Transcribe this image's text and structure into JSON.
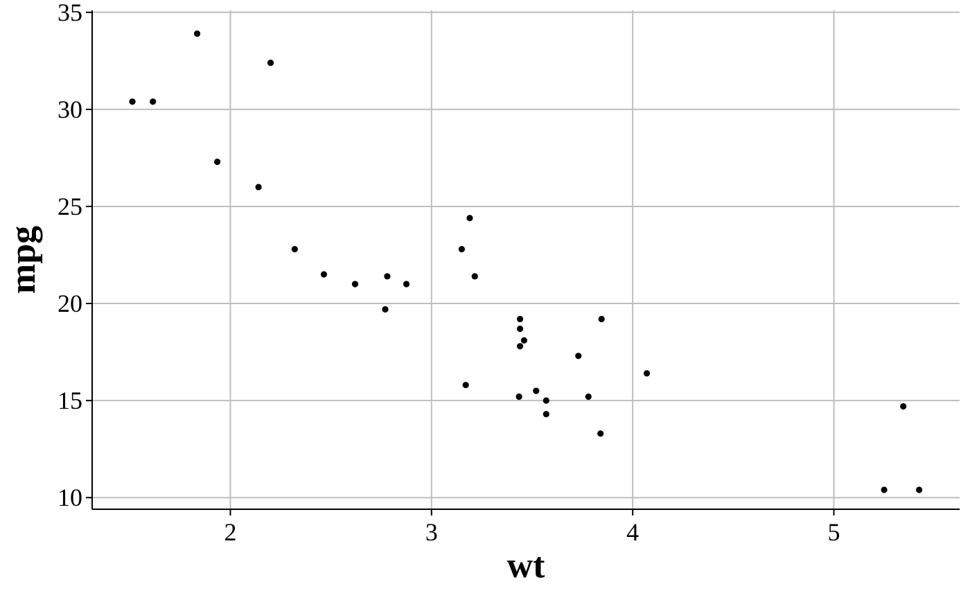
{
  "chart_data": {
    "type": "scatter",
    "title": "",
    "xlabel": "wt",
    "ylabel": "mpg",
    "xlim": [
      1.313,
      5.625
    ],
    "ylim": [
      9.4,
      35.1
    ],
    "xticks": [
      2,
      3,
      4,
      5
    ],
    "yticks": [
      10,
      15,
      20,
      25,
      30,
      35
    ],
    "xtick_labels": [
      "2",
      "3",
      "4",
      "5"
    ],
    "ytick_labels": [
      "10",
      "15",
      "20",
      "25",
      "30",
      "35"
    ],
    "grid": true,
    "legend": "none",
    "point_color": "#000000",
    "grid_color": "#bebebe",
    "points": [
      {
        "x": 2.62,
        "y": 21.0
      },
      {
        "x": 2.875,
        "y": 21.0
      },
      {
        "x": 2.32,
        "y": 22.8
      },
      {
        "x": 3.215,
        "y": 21.4
      },
      {
        "x": 3.44,
        "y": 18.7
      },
      {
        "x": 3.46,
        "y": 18.1
      },
      {
        "x": 3.57,
        "y": 14.3
      },
      {
        "x": 3.19,
        "y": 24.4
      },
      {
        "x": 3.15,
        "y": 22.8
      },
      {
        "x": 3.44,
        "y": 19.2
      },
      {
        "x": 3.44,
        "y": 17.8
      },
      {
        "x": 4.07,
        "y": 16.4
      },
      {
        "x": 3.73,
        "y": 17.3
      },
      {
        "x": 3.78,
        "y": 15.2
      },
      {
        "x": 5.25,
        "y": 10.4
      },
      {
        "x": 5.424,
        "y": 10.4
      },
      {
        "x": 5.345,
        "y": 14.7
      },
      {
        "x": 2.2,
        "y": 32.4
      },
      {
        "x": 1.615,
        "y": 30.4
      },
      {
        "x": 1.835,
        "y": 33.9
      },
      {
        "x": 2.465,
        "y": 21.5
      },
      {
        "x": 3.52,
        "y": 15.5
      },
      {
        "x": 3.435,
        "y": 15.2
      },
      {
        "x": 3.84,
        "y": 13.3
      },
      {
        "x": 3.845,
        "y": 19.2
      },
      {
        "x": 1.935,
        "y": 27.3
      },
      {
        "x": 2.14,
        "y": 26.0
      },
      {
        "x": 1.513,
        "y": 30.4
      },
      {
        "x": 3.17,
        "y": 15.8
      },
      {
        "x": 2.77,
        "y": 19.7
      },
      {
        "x": 3.57,
        "y": 15.0
      },
      {
        "x": 2.78,
        "y": 21.4
      }
    ]
  }
}
